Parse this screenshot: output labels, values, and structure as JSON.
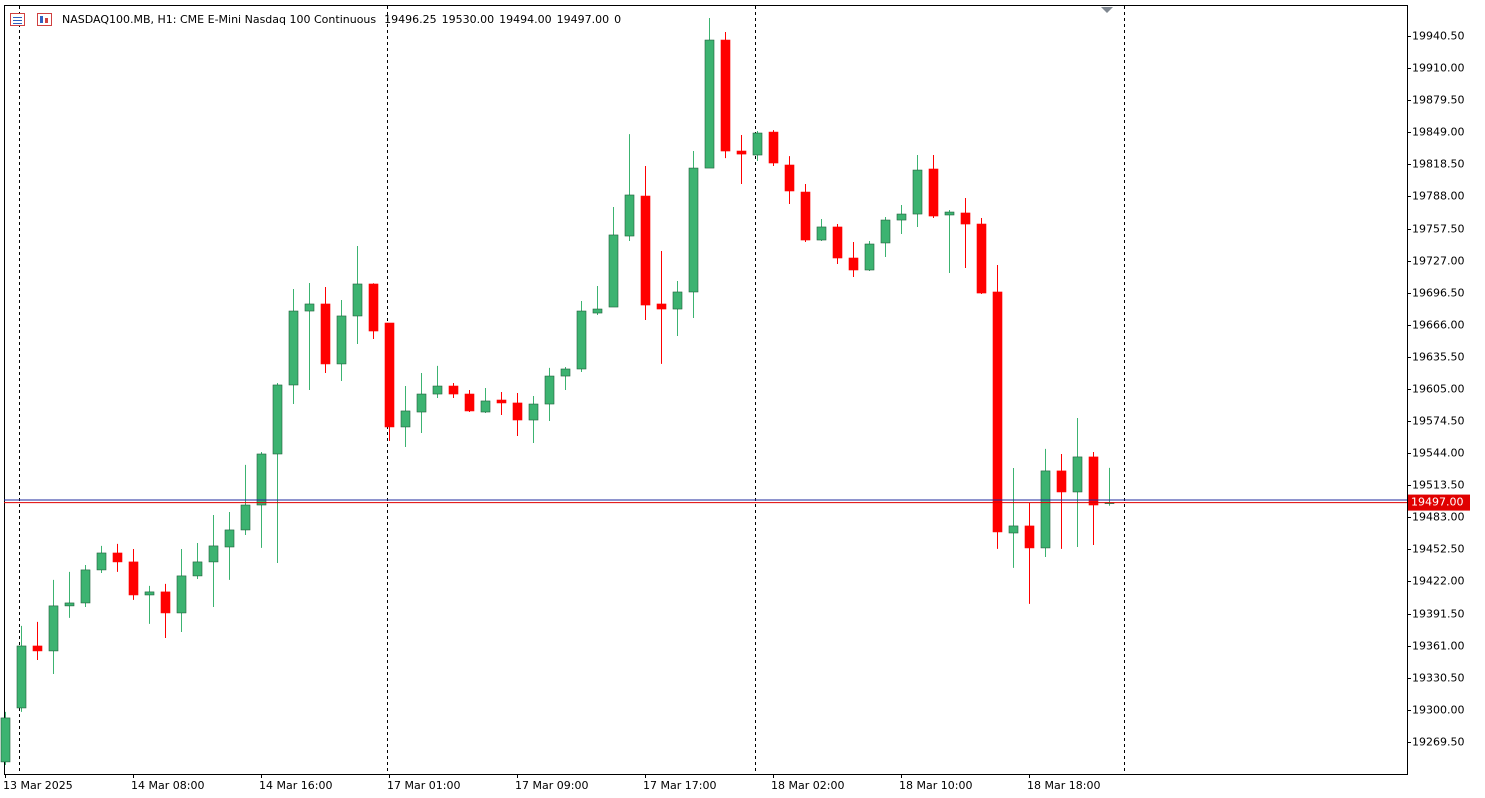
{
  "chart_data": {
    "type": "candlestick",
    "title": "NASDAQ100.MB, H1:  CME E-Mini Nasdaq 100 Continuous",
    "header_values": [
      "19496.25",
      "19530.00",
      "19494.00",
      "19497.00",
      "0"
    ],
    "categories": [
      "13 Mar 2025",
      null,
      null,
      null,
      null,
      null,
      null,
      null,
      "14 Mar 08:00",
      null,
      null,
      null,
      null,
      null,
      null,
      null,
      "14 Mar 16:00",
      null,
      null,
      null,
      null,
      null,
      null,
      null,
      "17 Mar 01:00",
      null,
      null,
      null,
      null,
      null,
      null,
      null,
      "17 Mar 09:00",
      null,
      null,
      null,
      null,
      null,
      null,
      null,
      "17 Mar 17:00",
      null,
      null,
      null,
      null,
      null,
      null,
      null,
      "18 Mar 02:00",
      null,
      null,
      null,
      null,
      null,
      null,
      null,
      "18 Mar 10:00",
      null,
      null,
      null,
      null,
      null,
      null,
      null,
      "18 Mar 18:00",
      null,
      null,
      null,
      null,
      null
    ],
    "open": [
      19250.5,
      19301.8,
      19360.7,
      19356.0,
      19398.8,
      19401.6,
      19433.0,
      19449.1,
      19440.6,
      19409.2,
      19412.1,
      19392.1,
      19427.3,
      19440.6,
      19454.8,
      19471.0,
      19494.7,
      19543.2,
      19608.8,
      19679.1,
      19685.8,
      19628.8,
      19674.4,
      19704.8,
      19667.7,
      19568.9,
      19583.1,
      19600.2,
      19607.8,
      19600.2,
      19583.1,
      19594.5,
      19591.7,
      19575.5,
      19590.7,
      19617.3,
      19624.0,
      19677.2,
      19682.9,
      19750.4,
      19788.4,
      19685.8,
      19681.0,
      19697.2,
      19815.0,
      19936.7,
      19831.2,
      19827.4,
      19849.2,
      19817.9,
      19792.2,
      19746.6,
      19759.0,
      19729.5,
      19718.1,
      19743.8,
      19765.6,
      19771.3,
      19814.1,
      19770.4,
      19772.3,
      19761.8,
      19697.2,
      19468.1,
      19474.8,
      19453.9,
      19527.1,
      19507.1,
      19540.4,
      19496.25
    ],
    "high": [
      19298.0,
      19379.8,
      19383.6,
      19423.5,
      19431.1,
      19437.7,
      19455.8,
      19457.7,
      19452.9,
      19417.8,
      19419.7,
      19452.9,
      19458.6,
      19485.2,
      19488.1,
      19532.8,
      19545.1,
      19610.7,
      19700.0,
      19705.7,
      19701.9,
      19689.6,
      19740.9,
      19705.5,
      19667.7,
      19607.8,
      19620.2,
      19626.9,
      19610.7,
      19604.0,
      19605.9,
      19602.1,
      19601.2,
      19598.3,
      19625.0,
      19625.9,
      19688.6,
      19702.9,
      19778.0,
      19847.3,
      19816.9,
      19736.1,
      19707.6,
      19831.2,
      19957.6,
      19944.3,
      19846.4,
      19850.2,
      19851.1,
      19826.4,
      19799.8,
      19766.6,
      19761.8,
      19744.7,
      19745.7,
      19768.5,
      19779.9,
      19827.4,
      19827.4,
      19775.1,
      19786.5,
      19767.5,
      19722.8,
      19529.9,
      19496.7,
      19548.0,
      19543.2,
      19577.4,
      19545.1,
      19530.0
    ],
    "low": [
      19247.6,
      19298.0,
      19347.4,
      19334.1,
      19387.4,
      19397.8,
      19430.1,
      19431.1,
      19404.5,
      19381.7,
      19368.3,
      19374.0,
      19424.4,
      19397.8,
      19423.5,
      19466.2,
      19453.9,
      19439.6,
      19590.7,
      19604.0,
      19620.2,
      19612.6,
      19647.8,
      19652.5,
      19555.6,
      19549.9,
      19563.2,
      19596.4,
      19596.4,
      19583.1,
      19582.2,
      19580.3,
      19560.3,
      19553.7,
      19574.6,
      19604.0,
      19621.1,
      19675.3,
      19682.9,
      19745.7,
      19670.6,
      19628.8,
      19655.4,
      19672.5,
      19815.0,
      19824.5,
      19799.8,
      19821.7,
      19816.9,
      19780.8,
      19744.7,
      19745.7,
      19723.8,
      19711.4,
      19717.1,
      19730.4,
      19752.3,
      19759.0,
      19767.5,
      19715.2,
      19720.0,
      19695.3,
      19453.0,
      19434.9,
      19400.7,
      19445.3,
      19453.0,
      19454.8,
      19456.7,
      19494.0
    ],
    "close": [
      19292.3,
      19360.7,
      19356.0,
      19398.8,
      19401.6,
      19433.0,
      19449.1,
      19440.6,
      19409.2,
      19412.1,
      19392.1,
      19427.3,
      19440.6,
      19455.8,
      19471.0,
      19494.7,
      19543.2,
      19608.8,
      19679.1,
      19685.8,
      19628.8,
      19674.4,
      19704.8,
      19660.1,
      19568.9,
      19584.1,
      19600.2,
      19607.8,
      19600.2,
      19584.1,
      19593.6,
      19591.7,
      19575.5,
      19590.7,
      19617.3,
      19624.0,
      19679.1,
      19681.0,
      19751.4,
      19789.4,
      19684.8,
      19681.0,
      19697.2,
      19815.0,
      19936.7,
      19831.2,
      19828.3,
      19848.3,
      19819.8,
      19793.2,
      19746.6,
      19759.0,
      19729.5,
      19718.1,
      19742.8,
      19765.6,
      19771.3,
      19813.1,
      19769.4,
      19773.2,
      19761.8,
      19696.2,
      19469.1,
      19474.8,
      19453.9,
      19527.1,
      19507.1,
      19540.4,
      19494.7,
      19497.0
    ],
    "up_color": "#3cb371",
    "down_color": "#ff0000",
    "ylim": [
      19239,
      19970
    ],
    "yticks": [
      {
        "value": 19940.5,
        "label": "19940.50"
      },
      {
        "value": 19910,
        "label": "19910.00"
      },
      {
        "value": 19879.5,
        "label": "19879.50"
      },
      {
        "value": 19849,
        "label": "19849.00"
      },
      {
        "value": 19818.5,
        "label": "19818.50"
      },
      {
        "value": 19788,
        "label": "19788.00"
      },
      {
        "value": 19757.5,
        "label": "19757.50"
      },
      {
        "value": 19727,
        "label": "19727.00"
      },
      {
        "value": 19696.5,
        "label": "19696.50"
      },
      {
        "value": 19666,
        "label": "19666.00"
      },
      {
        "value": 19635.5,
        "label": "19635.50"
      },
      {
        "value": 19605,
        "label": "19605.00"
      },
      {
        "value": 19574.5,
        "label": "19574.50"
      },
      {
        "value": 19544,
        "label": "19544.00"
      },
      {
        "value": 19513.5,
        "label": "19513.50"
      },
      {
        "value": 19483,
        "label": "19483.00"
      },
      {
        "value": 19452.5,
        "label": "19452.50"
      },
      {
        "value": 19422,
        "label": "19422.00"
      },
      {
        "value": 19391.5,
        "label": "19391.50"
      },
      {
        "value": 19361,
        "label": "19361.00"
      },
      {
        "value": 19330.5,
        "label": "19330.50"
      },
      {
        "value": 19300,
        "label": "19300.00"
      },
      {
        "value": 19269.5,
        "label": "19269.50"
      }
    ],
    "price_lines": [
      {
        "value": 19499.5,
        "color": "#1e2a9c"
      },
      {
        "value": 19497,
        "color": "#e00000",
        "label": "19497.00"
      }
    ]
  }
}
